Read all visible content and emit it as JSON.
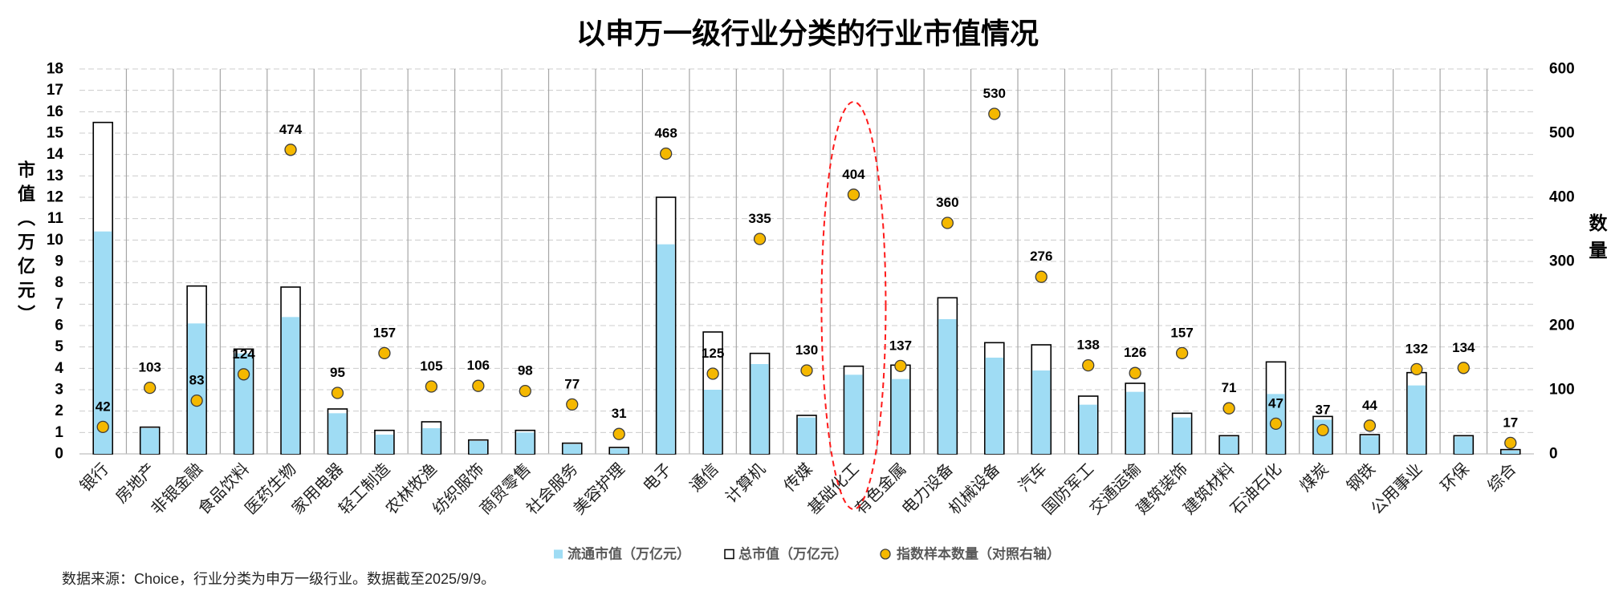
{
  "chart_data": {
    "type": "bar",
    "title": "以申万一级行业分类的行业市值情况",
    "categories": [
      "银行",
      "房地产",
      "非银金融",
      "食品饮料",
      "医药生物",
      "家用电器",
      "轻工制造",
      "农林牧渔",
      "纺织服饰",
      "商贸零售",
      "社会服务",
      "美容护理",
      "电子",
      "通信",
      "计算机",
      "传媒",
      "基础化工",
      "有色金属",
      "电力设备",
      "机械设备",
      "汽车",
      "国防军工",
      "交通运输",
      "建筑装饰",
      "建筑材料",
      "石油石化",
      "煤炭",
      "钢铁",
      "公用事业",
      "环保",
      "综合"
    ],
    "series": [
      {
        "name": "流通市值（万亿元）",
        "type": "bar",
        "color": "#9fdcf4",
        "values": [
          10.4,
          1.2,
          6.1,
          4.7,
          6.4,
          1.9,
          0.9,
          1.2,
          0.6,
          1.0,
          0.45,
          0.25,
          9.8,
          3.0,
          4.2,
          1.7,
          3.7,
          3.5,
          6.3,
          4.5,
          3.9,
          2.3,
          2.9,
          1.7,
          0.8,
          2.8,
          1.6,
          0.85,
          3.2,
          0.8,
          0.15
        ]
      },
      {
        "name": "总市值（万亿元）",
        "type": "bar",
        "color": "#ffffff",
        "border_color": "#000000",
        "values": [
          15.5,
          1.25,
          7.85,
          4.9,
          7.8,
          2.1,
          1.1,
          1.5,
          0.65,
          1.1,
          0.5,
          0.3,
          12.0,
          5.7,
          4.7,
          1.8,
          4.1,
          4.15,
          7.3,
          5.2,
          5.1,
          2.7,
          3.3,
          1.9,
          0.85,
          4.3,
          1.75,
          0.9,
          3.8,
          0.85,
          0.2
        ]
      },
      {
        "name": "指数样本数量（对照右轴）",
        "type": "scatter",
        "right_axis": true,
        "color": "#f5b800",
        "border_color": "#3d3d3d",
        "values": [
          42,
          103,
          83,
          124,
          474,
          95,
          157,
          105,
          106,
          98,
          77,
          31,
          468,
          125,
          335,
          130,
          404,
          137,
          360,
          530,
          276,
          138,
          126,
          157,
          71,
          47,
          37,
          44,
          132,
          134,
          17
        ]
      }
    ],
    "ylabel": "市值（万亿元）",
    "y2label": "数量",
    "ylim": [
      0,
      18
    ],
    "y2lim": [
      0,
      600
    ],
    "yticks": [
      0,
      1,
      2,
      3,
      4,
      5,
      6,
      7,
      8,
      9,
      10,
      11,
      12,
      13,
      14,
      15,
      16,
      17,
      18
    ],
    "y2ticks": [
      0,
      100,
      200,
      300,
      400,
      500,
      600
    ],
    "grid": true,
    "legend": "bottom",
    "highlight_category_index": 16,
    "highlight_color": "#ff1a1a"
  },
  "footnote": "数据来源：Choice，行业分类为申万一级行业。数据截至2025/9/9。"
}
